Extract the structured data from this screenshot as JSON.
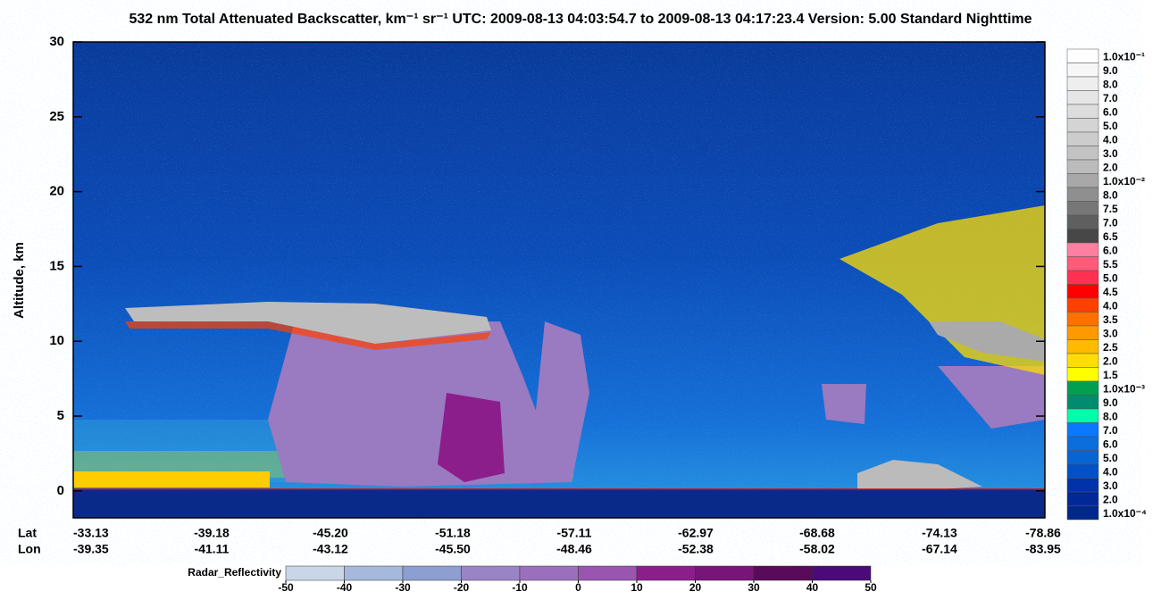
{
  "chart_data": {
    "type": "curtain",
    "title": "532 nm Total Attenuated Backscatter, km⁻¹ sr⁻¹    UTC:  2009-08-13 04:03:54.7  to  2009-08-13 04:17:23.4    Version: 5.00  Standard  Nighttime",
    "ylabel": "Altitude, km",
    "ylim": [
      -1.8,
      30
    ],
    "yticks": [
      0,
      5,
      10,
      15,
      20,
      25,
      30
    ],
    "x_rows": [
      {
        "name": "Lat",
        "labels": [
          "-33.13",
          "-39.18",
          "-45.20",
          "-51.18",
          "-57.11",
          "-62.97",
          "-68.68",
          "-74.13",
          "-78.86"
        ]
      },
      {
        "name": "Lon",
        "labels": [
          "-39.35",
          "-41.11",
          "-43.12",
          "-45.50",
          "-48.46",
          "-52.38",
          "-58.02",
          "-67.14",
          "-83.95"
        ]
      }
    ],
    "colorbar": {
      "labels": [
        "1.0x10⁻¹",
        "9.0",
        "8.0",
        "7.0",
        "6.0",
        "5.0",
        "4.0",
        "3.0",
        "2.0",
        "1.0x10⁻²",
        "8.0",
        "7.5",
        "7.0",
        "6.5",
        "6.0",
        "5.5",
        "5.0",
        "4.5",
        "4.0",
        "3.5",
        "3.0",
        "2.5",
        "2.0",
        "1.5",
        "1.0x10⁻³",
        "9.0",
        "8.0",
        "7.0",
        "6.0",
        "5.0",
        "4.0",
        "3.0",
        "2.0",
        "1.0x10⁻⁴"
      ],
      "colors": [
        "#ffffff",
        "#f7f7f7",
        "#eeeeee",
        "#e6e6e6",
        "#dddddd",
        "#d4d4d4",
        "#cccccc",
        "#c3c3c3",
        "#bbbbbb",
        "#a8a8a8",
        "#8f8f8f",
        "#777777",
        "#5f5f5f",
        "#474747",
        "#ff7fa0",
        "#ff5a7a",
        "#ff3050",
        "#ff0000",
        "#ff4000",
        "#ff7000",
        "#ff9900",
        "#ffbb00",
        "#ffdd00",
        "#ffff00",
        "#00a050",
        "#008c6e",
        "#00ffaa",
        "#0a78ff",
        "#0a6edc",
        "#0864d2",
        "#0050c8",
        "#0032aa",
        "#002896",
        "#00288c"
      ]
    },
    "radar": {
      "label": "Radar_Reflectivity",
      "lim": [
        -50,
        50
      ],
      "ticks": [
        -50,
        -40,
        -30,
        -20,
        -10,
        0,
        10,
        20,
        30,
        40,
        50
      ],
      "colors": [
        "#c8d6e8",
        "#a6b8dc",
        "#8c9fd0",
        "#9a84c6",
        "#9c6fbc",
        "#9a55b0",
        "#8c1e8c",
        "#78147a",
        "#5a0a5a",
        "#4b0a7a"
      ]
    }
  }
}
